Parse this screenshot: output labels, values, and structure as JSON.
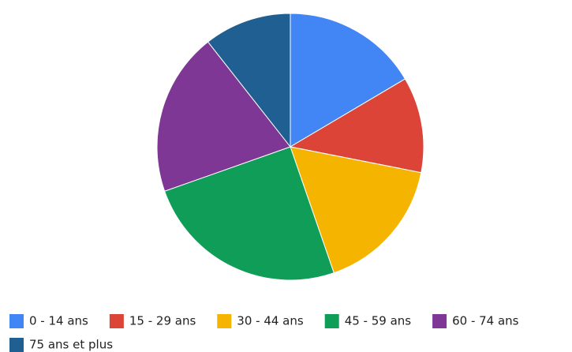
{
  "chart_data": {
    "type": "pie",
    "categories": [
      "0 - 14 ans",
      "15 - 29 ans",
      "30 - 44 ans",
      "45 - 59 ans",
      "60 - 74 ans",
      "75 ans et plus"
    ],
    "values": [
      16.5,
      11.6,
      16.6,
      24.9,
      19.8,
      10.6
    ],
    "colors": [
      "#4285f4",
      "#db4437",
      "#f4b400",
      "#0f9d58",
      "#7e3794",
      "#1f5f91"
    ],
    "legend": "bottom"
  }
}
